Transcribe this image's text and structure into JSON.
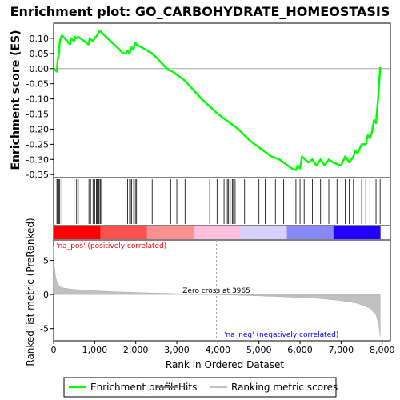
{
  "chart_data": {
    "type": "line",
    "title": "Enrichment plot: GO_CARBOHYDRATE_HOMEOSTASIS",
    "panels": {
      "enrichment": {
        "ylabel": "Enrichment score (ES)",
        "ylim": [
          -0.36,
          0.15
        ],
        "yticks": [
          "0.10",
          "0.05",
          "0.00",
          "-0.05",
          "-0.10",
          "-0.15",
          "-0.20",
          "-0.25",
          "-0.30",
          "-0.35"
        ],
        "ytick_values": [
          0.1,
          0.05,
          0.0,
          -0.05,
          -0.1,
          -0.15,
          -0.2,
          -0.25,
          -0.3,
          -0.35
        ],
        "series": [
          {
            "name": "Enrichment profile",
            "color": "#00ff00",
            "x": [
              0,
              80,
              100,
              130,
              150,
              200,
              400,
              430,
              500,
              520,
              560,
              600,
              850,
              880,
              960,
              1000,
              1060,
              1100,
              1130,
              1200,
              1700,
              1760,
              1800,
              1850,
              1900,
              1950,
              1990,
              2020,
              2400,
              2800,
              2900,
              3200,
              3600,
              4000,
              4200,
              4500,
              4800,
              5000,
              5300,
              5400,
              5500,
              5600,
              5700,
              5800,
              5900,
              5950,
              6000,
              6050,
              6200,
              6300,
              6400,
              6500,
              6600,
              6700,
              6800,
              7000,
              7100,
              7200,
              7300,
              7350,
              7400,
              7500,
              7600,
              7650,
              7700,
              7750,
              7800,
              7850,
              7900,
              7950
            ],
            "y": [
              0.0,
              -0.01,
              0.03,
              0.05,
              0.09,
              0.11,
              0.08,
              0.1,
              0.09,
              0.105,
              0.1,
              0.105,
              0.08,
              0.1,
              0.09,
              0.1,
              0.11,
              0.12,
              0.125,
              0.115,
              0.05,
              0.05,
              0.06,
              0.05,
              0.07,
              0.065,
              0.085,
              0.08,
              0.05,
              -0.005,
              -0.01,
              -0.04,
              -0.1,
              -0.15,
              -0.17,
              -0.2,
              -0.24,
              -0.26,
              -0.29,
              -0.295,
              -0.3,
              -0.31,
              -0.32,
              -0.33,
              -0.335,
              -0.32,
              -0.33,
              -0.29,
              -0.31,
              -0.3,
              -0.32,
              -0.3,
              -0.32,
              -0.3,
              -0.31,
              -0.32,
              -0.29,
              -0.31,
              -0.29,
              -0.27,
              -0.28,
              -0.25,
              -0.25,
              -0.22,
              -0.23,
              -0.21,
              -0.17,
              -0.18,
              -0.1,
              0.005
            ]
          }
        ]
      },
      "hits": {
        "series_name": "Hits",
        "color": "#000000",
        "positions": [
          80,
          100,
          130,
          150,
          200,
          500,
          560,
          600,
          860,
          900,
          960,
          1000,
          1040,
          1060,
          1100,
          1130,
          1150,
          1760,
          1800,
          1850,
          1870,
          1900,
          1950,
          1990,
          2020,
          2400,
          2850,
          3000,
          3200,
          3800,
          3980,
          4150,
          4200,
          4230,
          4260,
          4300,
          4350,
          4380,
          4420,
          4650,
          5000,
          5150,
          5400,
          5600,
          5900,
          5950,
          6000,
          6050,
          6100,
          6300,
          6500,
          6700,
          6900,
          7100,
          7200,
          7300,
          7500,
          7600,
          7700,
          7850,
          7900,
          7950
        ]
      },
      "ranking_bar": {
        "colors": [
          "#ff0000",
          "#ff5050",
          "#ff9090",
          "#ffc0e0",
          "#d8d0ff",
          "#8888ff",
          "#2000ff"
        ],
        "label_pos": "'na_pos' (positively correlated)",
        "label_neg": "'na_neg' (negatively correlated)",
        "label_pos_color": "#ff0000",
        "label_neg_color": "#0000ff"
      },
      "metric": {
        "ylabel": "Ranked list metric (PreRanked)",
        "xlabel": "Rank in Ordered Dataset",
        "ylim": [
          -6.8,
          8.0
        ],
        "yticks": [
          "5",
          "0",
          "-5"
        ],
        "ytick_values": [
          5,
          0,
          -5
        ],
        "xticks": [
          "0",
          "1,000",
          "2,000",
          "3,000",
          "4,000",
          "5,000",
          "6,000",
          "7,000",
          "8,000"
        ],
        "xtick_values": [
          0,
          1000,
          2000,
          3000,
          4000,
          5000,
          6000,
          7000,
          8000
        ],
        "xlim": [
          0,
          8200
        ],
        "zero_cross_label": "Zero cross at 3965",
        "zero_cross": 3965,
        "series_name": "Ranking metric scores",
        "color": "#c0c0c0",
        "x": [
          0,
          20,
          50,
          100,
          200,
          400,
          800,
          1500,
          2500,
          3500,
          3965,
          4500,
          5500,
          6500,
          7000,
          7400,
          7700,
          7850,
          7920,
          7950
        ],
        "y": [
          7.0,
          4.0,
          2.5,
          1.5,
          1.0,
          0.8,
          0.6,
          0.4,
          0.2,
          0.05,
          0.0,
          -0.1,
          -0.3,
          -0.6,
          -0.9,
          -1.3,
          -2.0,
          -3.0,
          -4.5,
          -6.2
        ]
      }
    },
    "legend": {
      "placement": "bottom",
      "items": [
        {
          "label": "Enrichment profile",
          "color": "#00ff00"
        },
        {
          "label": "Hits",
          "color": "#808080"
        },
        {
          "label": "Ranking metric scores",
          "color": "#c0c0c0"
        }
      ]
    }
  }
}
